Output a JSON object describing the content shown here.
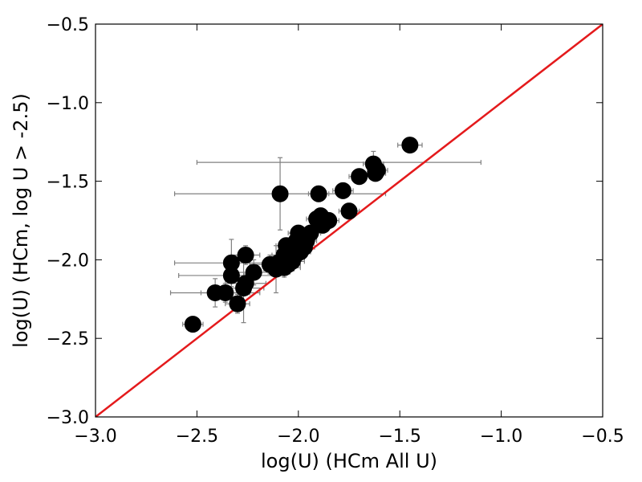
{
  "chart_data": {
    "type": "scatter",
    "xlabel": "log(U) (HCm All U)",
    "ylabel": "log(U) (HCm, log U > -2.5)",
    "xlim": [
      -3.0,
      -0.5
    ],
    "ylim": [
      -3.0,
      -0.5
    ],
    "xticks": [
      -3.0,
      -2.5,
      -2.0,
      -1.5,
      -1.0,
      -0.5
    ],
    "yticks": [
      -3.0,
      -2.5,
      -2.0,
      -1.5,
      -1.0,
      -0.5
    ],
    "xtick_labels": [
      "−3.0",
      "−2.5",
      "−2.0",
      "−1.5",
      "−1.0",
      "−0.5"
    ],
    "ytick_labels": [
      "−3.0",
      "−2.5",
      "−2.0",
      "−1.5",
      "−1.0",
      "−0.5"
    ],
    "grid": false,
    "point_color": "#000000",
    "errorbar_color": "#808080",
    "reference_line": {
      "x": [
        -3.0,
        -0.5
      ],
      "y": [
        -3.0,
        -0.5
      ],
      "color": "#e41a1c"
    },
    "points": [
      {
        "x": -2.52,
        "y": -2.41,
        "xerr": 0.05,
        "yerr": 0.05
      },
      {
        "x": -2.41,
        "y": -2.21,
        "xerr": 0.22,
        "yerr": 0.09
      },
      {
        "x": -2.36,
        "y": -2.21,
        "xerr": 0.12,
        "yerr": 0.06
      },
      {
        "x": -2.33,
        "y": -2.02,
        "xerr": 0.28,
        "yerr": 0.15
      },
      {
        "x": -2.33,
        "y": -2.1,
        "xerr": 0.26,
        "yerr": 0.1
      },
      {
        "x": -2.3,
        "y": -2.28,
        "xerr": 0.06,
        "yerr": 0.06
      },
      {
        "x": -2.27,
        "y": -2.18,
        "xerr": 0.1,
        "yerr": 0.22
      },
      {
        "x": -2.26,
        "y": -2.15,
        "xerr": 0.1,
        "yerr": 0.06
      },
      {
        "x": -2.26,
        "y": -1.97,
        "xerr": 0.07,
        "yerr": 0.06
      },
      {
        "x": -2.22,
        "y": -2.08,
        "xerr": 0.08,
        "yerr": 0.08
      },
      {
        "x": -2.14,
        "y": -2.03,
        "xerr": 0.1,
        "yerr": 0.06
      },
      {
        "x": -2.11,
        "y": -2.06,
        "xerr": 0.06,
        "yerr": 0.15
      },
      {
        "x": -2.1,
        "y": -2.02,
        "xerr": 0.06,
        "yerr": 0.08
      },
      {
        "x": -2.09,
        "y": -1.58,
        "xerr": 0.52,
        "yerr": 0.23
      },
      {
        "x": -2.07,
        "y": -1.97,
        "xerr": 0.06,
        "yerr": 0.1
      },
      {
        "x": -2.07,
        "y": -2.05,
        "xerr": 0.08,
        "yerr": 0.06
      },
      {
        "x": -2.06,
        "y": -1.91,
        "xerr": 0.05,
        "yerr": 0.05
      },
      {
        "x": -2.05,
        "y": -2.03,
        "xerr": 0.06,
        "yerr": 0.06
      },
      {
        "x": -2.03,
        "y": -2.01,
        "xerr": 0.06,
        "yerr": 0.06
      },
      {
        "x": -2.02,
        "y": -1.98,
        "xerr": 0.05,
        "yerr": 0.06
      },
      {
        "x": -2.01,
        "y": -1.88,
        "xerr": 0.05,
        "yerr": 0.05
      },
      {
        "x": -2.0,
        "y": -1.83,
        "xerr": 0.05,
        "yerr": 0.05
      },
      {
        "x": -1.99,
        "y": -1.95,
        "xerr": 0.05,
        "yerr": 0.05
      },
      {
        "x": -1.98,
        "y": -1.86,
        "xerr": 0.05,
        "yerr": 0.05
      },
      {
        "x": -1.97,
        "y": -1.92,
        "xerr": 0.05,
        "yerr": 0.05
      },
      {
        "x": -1.96,
        "y": -1.88,
        "xerr": 0.05,
        "yerr": 0.05
      },
      {
        "x": -1.94,
        "y": -1.83,
        "xerr": 0.05,
        "yerr": 0.05
      },
      {
        "x": -1.91,
        "y": -1.74,
        "xerr": 0.05,
        "yerr": 0.05
      },
      {
        "x": -1.9,
        "y": -1.58,
        "xerr": 0.05,
        "yerr": 0.05
      },
      {
        "x": -1.89,
        "y": -1.72,
        "xerr": 0.05,
        "yerr": 0.05
      },
      {
        "x": -1.88,
        "y": -1.78,
        "xerr": 0.05,
        "yerr": 0.05
      },
      {
        "x": -1.85,
        "y": -1.75,
        "xerr": 0.05,
        "yerr": 0.05
      },
      {
        "x": -1.78,
        "y": -1.56,
        "xerr": 0.05,
        "yerr": 0.05
      },
      {
        "x": -1.75,
        "y": -1.69,
        "xerr": 0.05,
        "yerr": 0.05
      },
      {
        "x": -1.7,
        "y": -1.47,
        "xerr": 0.05,
        "yerr": 0.05
      },
      {
        "x": -1.63,
        "y": -1.39,
        "xerr": 0.05,
        "yerr": 0.08
      },
      {
        "x": -1.62,
        "y": -1.45,
        "xerr": 0.05,
        "yerr": 0.05
      },
      {
        "x": -1.61,
        "y": -1.43,
        "xerr": 0.05,
        "yerr": 0.05
      },
      {
        "x": -1.45,
        "y": -1.27,
        "xerr": 0.06,
        "yerr": 0.04
      },
      {
        "x": -1.8,
        "y": -1.38,
        "xerr": 0.7,
        "yerr": 0.0
      }
    ]
  }
}
